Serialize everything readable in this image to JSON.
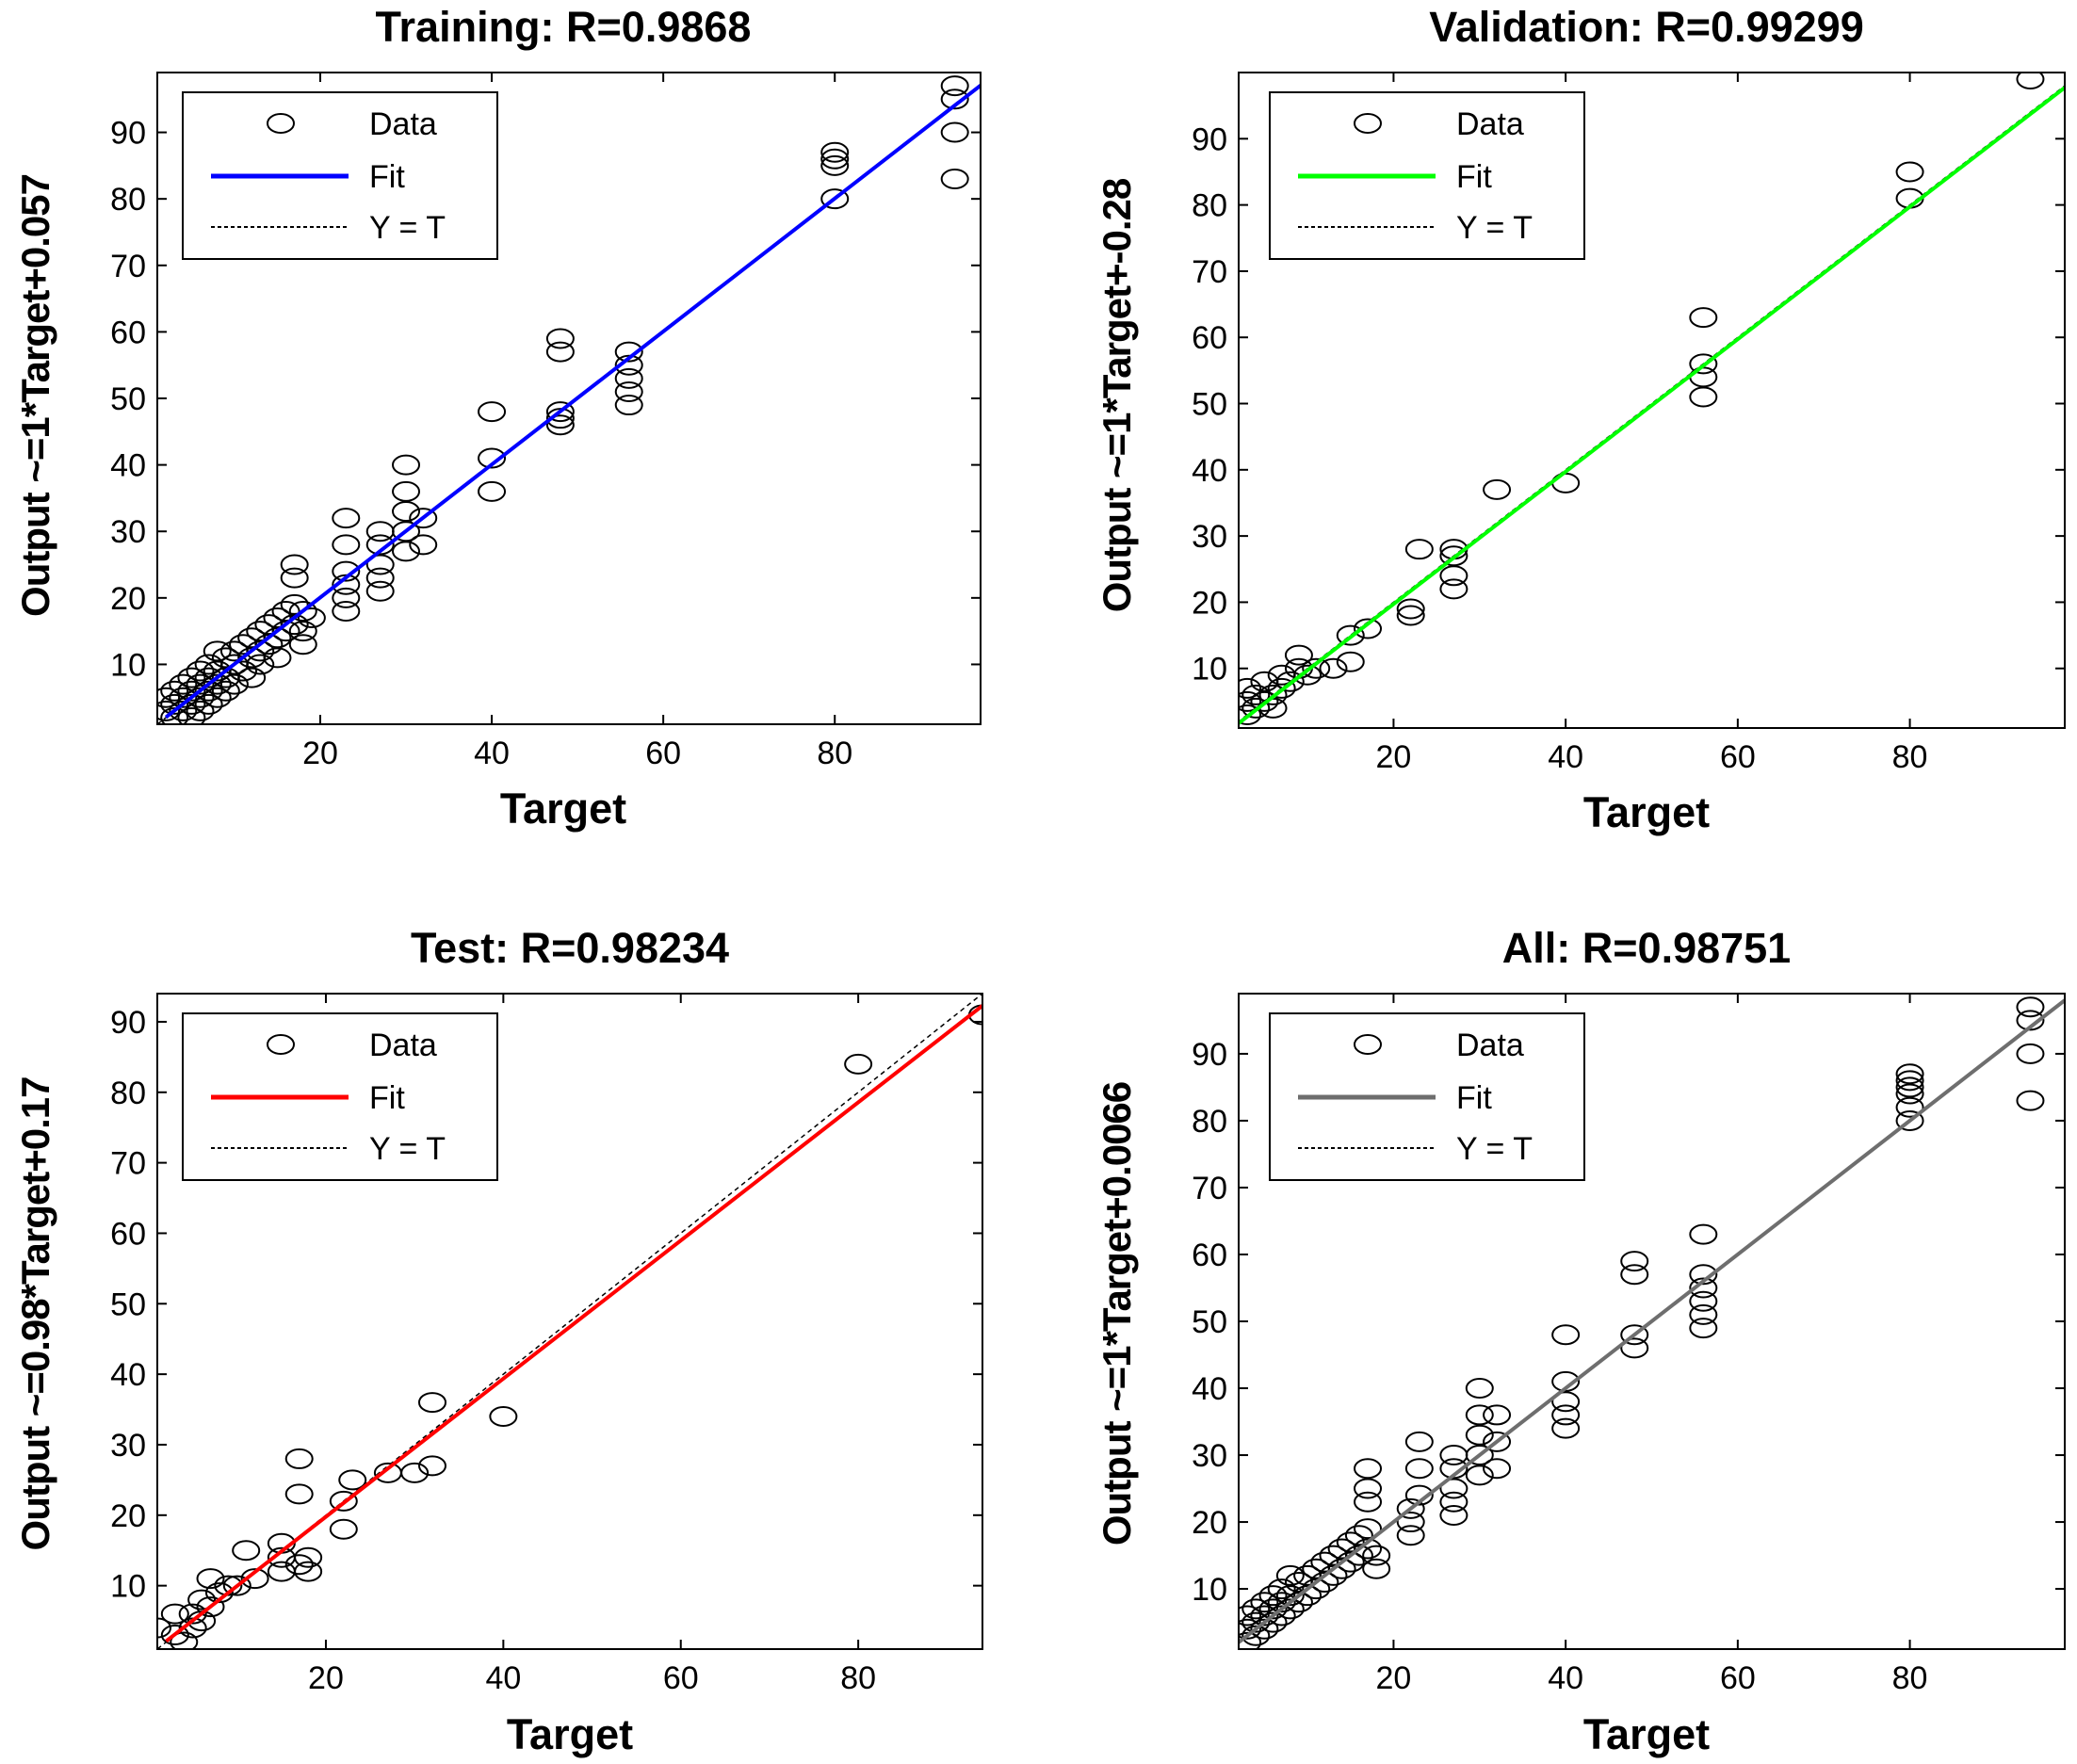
{
  "colors": {
    "training": "#0000ff",
    "validation": "#00ff00",
    "test": "#ff0000",
    "all": "#6e6e6e",
    "axis": "#000000"
  },
  "chart_data": [
    {
      "type": "scatter",
      "title": "Training: R=0.9868",
      "xlabel": "Target",
      "ylabel": "Output ~=1*Target+0.057",
      "xlim": [
        1,
        97
      ],
      "ylim": [
        1,
        99
      ],
      "xticks": [
        20,
        40,
        60,
        80
      ],
      "yticks": [
        10,
        20,
        30,
        40,
        50,
        60,
        70,
        80,
        90
      ],
      "fit": {
        "slope": 1,
        "intercept": 0.057,
        "color": "#0000ff"
      },
      "legend": [
        "Data",
        "Fit",
        "Y = T"
      ],
      "points": [
        [
          2,
          5
        ],
        [
          2,
          3
        ],
        [
          3,
          6
        ],
        [
          3,
          2
        ],
        [
          3,
          4
        ],
        [
          4,
          7
        ],
        [
          4,
          5
        ],
        [
          4,
          3
        ],
        [
          5,
          8
        ],
        [
          5,
          6
        ],
        [
          5,
          4
        ],
        [
          5,
          2
        ],
        [
          6,
          9
        ],
        [
          6,
          7
        ],
        [
          6,
          5
        ],
        [
          6,
          3
        ],
        [
          7,
          10
        ],
        [
          7,
          8
        ],
        [
          7,
          6
        ],
        [
          7,
          4
        ],
        [
          8,
          12
        ],
        [
          8,
          9
        ],
        [
          8,
          7
        ],
        [
          8,
          5
        ],
        [
          9,
          11
        ],
        [
          9,
          8
        ],
        [
          9,
          6
        ],
        [
          10,
          12
        ],
        [
          10,
          10
        ],
        [
          10,
          7
        ],
        [
          11,
          13
        ],
        [
          11,
          9
        ],
        [
          12,
          14
        ],
        [
          12,
          11
        ],
        [
          12,
          8
        ],
        [
          13,
          15
        ],
        [
          13,
          12
        ],
        [
          13,
          10
        ],
        [
          14,
          16
        ],
        [
          14,
          13
        ],
        [
          15,
          17
        ],
        [
          15,
          14
        ],
        [
          15,
          11
        ],
        [
          16,
          18
        ],
        [
          16,
          15
        ],
        [
          17,
          19
        ],
        [
          17,
          16
        ],
        [
          17,
          25
        ],
        [
          17,
          23
        ],
        [
          18,
          18
        ],
        [
          18,
          15
        ],
        [
          18,
          13
        ],
        [
          19,
          17
        ],
        [
          23,
          32
        ],
        [
          23,
          28
        ],
        [
          23,
          24
        ],
        [
          23,
          22
        ],
        [
          23,
          20
        ],
        [
          23,
          18
        ],
        [
          27,
          30
        ],
        [
          27,
          28
        ],
        [
          27,
          25
        ],
        [
          27,
          23
        ],
        [
          27,
          21
        ],
        [
          30,
          40
        ],
        [
          30,
          36
        ],
        [
          30,
          33
        ],
        [
          30,
          30
        ],
        [
          30,
          27
        ],
        [
          32,
          32
        ],
        [
          32,
          28
        ],
        [
          40,
          48
        ],
        [
          40,
          41
        ],
        [
          40,
          36
        ],
        [
          48,
          59
        ],
        [
          48,
          57
        ],
        [
          48,
          48
        ],
        [
          48,
          47
        ],
        [
          48,
          46
        ],
        [
          56,
          57
        ],
        [
          56,
          55
        ],
        [
          56,
          53
        ],
        [
          56,
          51
        ],
        [
          56,
          49
        ],
        [
          80,
          87
        ],
        [
          80,
          86
        ],
        [
          80,
          85
        ],
        [
          80,
          80
        ],
        [
          94,
          97
        ],
        [
          94,
          95
        ],
        [
          94,
          90
        ],
        [
          94,
          83
        ]
      ]
    },
    {
      "type": "scatter",
      "title": "Validation: R=0.99299",
      "xlabel": "Target",
      "ylabel": "Output ~=1*Target+-0.28",
      "xlim": [
        2,
        98
      ],
      "ylim": [
        1,
        100
      ],
      "xticks": [
        20,
        40,
        60,
        80
      ],
      "yticks": [
        10,
        20,
        30,
        40,
        50,
        60,
        70,
        80,
        90
      ],
      "fit": {
        "slope": 1,
        "intercept": -0.28,
        "color": "#00ff00"
      },
      "legend": [
        "Data",
        "Fit",
        "Y = T"
      ],
      "points": [
        [
          3,
          3
        ],
        [
          3,
          5
        ],
        [
          3,
          7
        ],
        [
          4,
          4
        ],
        [
          4,
          6
        ],
        [
          5,
          5
        ],
        [
          5,
          8
        ],
        [
          6,
          4
        ],
        [
          6,
          6
        ],
        [
          7,
          7
        ],
        [
          7,
          9
        ],
        [
          8,
          8
        ],
        [
          9,
          10
        ],
        [
          9,
          12
        ],
        [
          10,
          9
        ],
        [
          11,
          10
        ],
        [
          13,
          10
        ],
        [
          15,
          11
        ],
        [
          15,
          15
        ],
        [
          17,
          16
        ],
        [
          22,
          18
        ],
        [
          22,
          19
        ],
        [
          23,
          28
        ],
        [
          27,
          22
        ],
        [
          27,
          24
        ],
        [
          27,
          27
        ],
        [
          27,
          28
        ],
        [
          32,
          37
        ],
        [
          40,
          38
        ],
        [
          56,
          51
        ],
        [
          56,
          54
        ],
        [
          56,
          56
        ],
        [
          56,
          63
        ],
        [
          80,
          81
        ],
        [
          80,
          85
        ],
        [
          94,
          99
        ]
      ]
    },
    {
      "type": "scatter",
      "title": "Test: R=0.98234",
      "xlabel": "Target",
      "ylabel": "Output ~=0.98*Target+0.17",
      "xlim": [
        1,
        94
      ],
      "ylim": [
        1,
        94
      ],
      "xticks": [
        20,
        40,
        60,
        80
      ],
      "yticks": [
        10,
        20,
        30,
        40,
        50,
        60,
        70,
        80,
        90
      ],
      "fit": {
        "slope": 0.98,
        "intercept": 0.17,
        "color": "#ff0000"
      },
      "legend": [
        "Data",
        "Fit",
        "Y = T"
      ],
      "points": [
        [
          1,
          4
        ],
        [
          3,
          6
        ],
        [
          3,
          3
        ],
        [
          4,
          2
        ],
        [
          5,
          4
        ],
        [
          5,
          6
        ],
        [
          6,
          5
        ],
        [
          6,
          8
        ],
        [
          7,
          7
        ],
        [
          7,
          11
        ],
        [
          8,
          9
        ],
        [
          9,
          10
        ],
        [
          10,
          10
        ],
        [
          11,
          15
        ],
        [
          12,
          11
        ],
        [
          15,
          12
        ],
        [
          15,
          14
        ],
        [
          15,
          16
        ],
        [
          17,
          13
        ],
        [
          17,
          28
        ],
        [
          17,
          23
        ],
        [
          18,
          14
        ],
        [
          18,
          12
        ],
        [
          22,
          18
        ],
        [
          22,
          22
        ],
        [
          23,
          25
        ],
        [
          27,
          26
        ],
        [
          30,
          26
        ],
        [
          32,
          36
        ],
        [
          32,
          27
        ],
        [
          40,
          34
        ],
        [
          80,
          84
        ],
        [
          94,
          91
        ]
      ]
    },
    {
      "type": "scatter",
      "title": "All: R=0.98751",
      "xlabel": "Target",
      "ylabel": "Output ~=1*Target+0.0066",
      "xlim": [
        2,
        98
      ],
      "ylim": [
        1,
        99
      ],
      "xticks": [
        20,
        40,
        60,
        80
      ],
      "yticks": [
        10,
        20,
        30,
        40,
        50,
        60,
        70,
        80,
        90
      ],
      "fit": {
        "slope": 1,
        "intercept": 0.0066,
        "color": "#6e6e6e"
      },
      "legend": [
        "Data",
        "Fit",
        "Y = T"
      ],
      "points": [
        [
          3,
          2
        ],
        [
          3,
          4
        ],
        [
          3,
          6
        ],
        [
          4,
          3
        ],
        [
          4,
          5
        ],
        [
          4,
          7
        ],
        [
          5,
          4
        ],
        [
          5,
          6
        ],
        [
          5,
          8
        ],
        [
          6,
          5
        ],
        [
          6,
          7
        ],
        [
          6,
          9
        ],
        [
          7,
          6
        ],
        [
          7,
          8
        ],
        [
          7,
          10
        ],
        [
          8,
          7
        ],
        [
          8,
          9
        ],
        [
          8,
          12
        ],
        [
          9,
          8
        ],
        [
          9,
          11
        ],
        [
          10,
          9
        ],
        [
          10,
          12
        ],
        [
          11,
          10
        ],
        [
          11,
          13
        ],
        [
          12,
          11
        ],
        [
          12,
          14
        ],
        [
          13,
          12
        ],
        [
          13,
          15
        ],
        [
          14,
          13
        ],
        [
          14,
          16
        ],
        [
          15,
          14
        ],
        [
          15,
          17
        ],
        [
          16,
          15
        ],
        [
          16,
          18
        ],
        [
          17,
          16
        ],
        [
          17,
          19
        ],
        [
          17,
          23
        ],
        [
          17,
          25
        ],
        [
          17,
          28
        ],
        [
          18,
          13
        ],
        [
          18,
          15
        ],
        [
          22,
          18
        ],
        [
          22,
          20
        ],
        [
          22,
          22
        ],
        [
          23,
          24
        ],
        [
          23,
          28
        ],
        [
          23,
          32
        ],
        [
          27,
          21
        ],
        [
          27,
          23
        ],
        [
          27,
          25
        ],
        [
          27,
          28
        ],
        [
          27,
          30
        ],
        [
          30,
          27
        ],
        [
          30,
          30
        ],
        [
          30,
          33
        ],
        [
          30,
          36
        ],
        [
          30,
          40
        ],
        [
          32,
          28
        ],
        [
          32,
          32
        ],
        [
          32,
          36
        ],
        [
          40,
          34
        ],
        [
          40,
          36
        ],
        [
          40,
          38
        ],
        [
          40,
          41
        ],
        [
          40,
          48
        ],
        [
          48,
          46
        ],
        [
          48,
          48
        ],
        [
          48,
          57
        ],
        [
          48,
          59
        ],
        [
          56,
          49
        ],
        [
          56,
          51
        ],
        [
          56,
          53
        ],
        [
          56,
          55
        ],
        [
          56,
          57
        ],
        [
          56,
          63
        ],
        [
          80,
          80
        ],
        [
          80,
          82
        ],
        [
          80,
          84
        ],
        [
          80,
          85
        ],
        [
          80,
          86
        ],
        [
          80,
          87
        ],
        [
          94,
          83
        ],
        [
          94,
          90
        ],
        [
          94,
          95
        ],
        [
          94,
          97
        ]
      ]
    }
  ]
}
